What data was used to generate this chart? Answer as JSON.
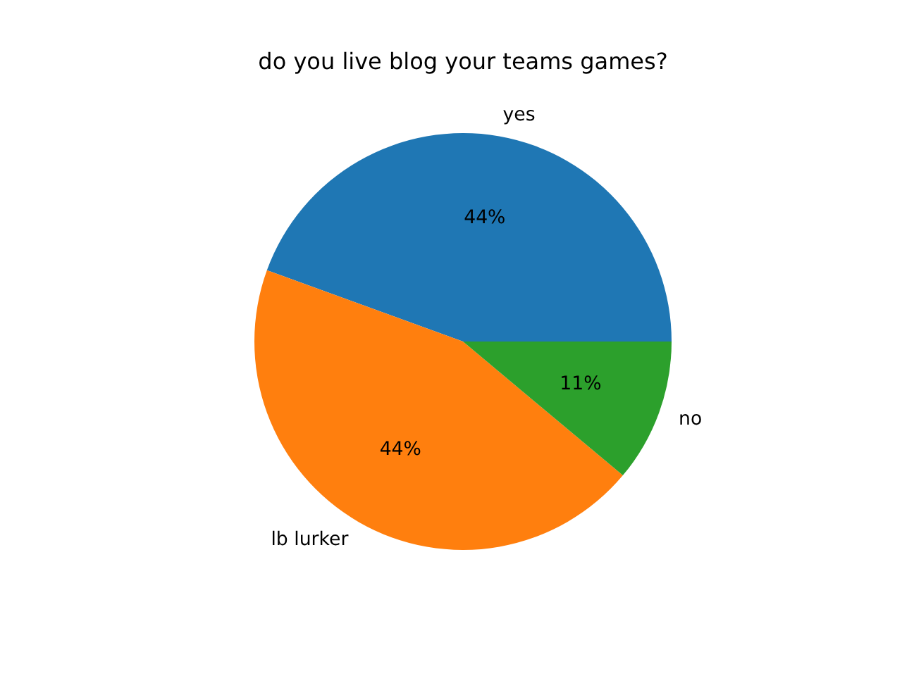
{
  "chart_data": {
    "type": "pie",
    "title": "do you live blog your teams games?",
    "categories": [
      "yes",
      "lb lurker",
      "no"
    ],
    "values": [
      44.45,
      44.45,
      11.1
    ],
    "colors": [
      "#1f77b4",
      "#ff7f0e",
      "#2ca02c"
    ],
    "value_labels": [
      "44%",
      "44%",
      "11%"
    ]
  }
}
